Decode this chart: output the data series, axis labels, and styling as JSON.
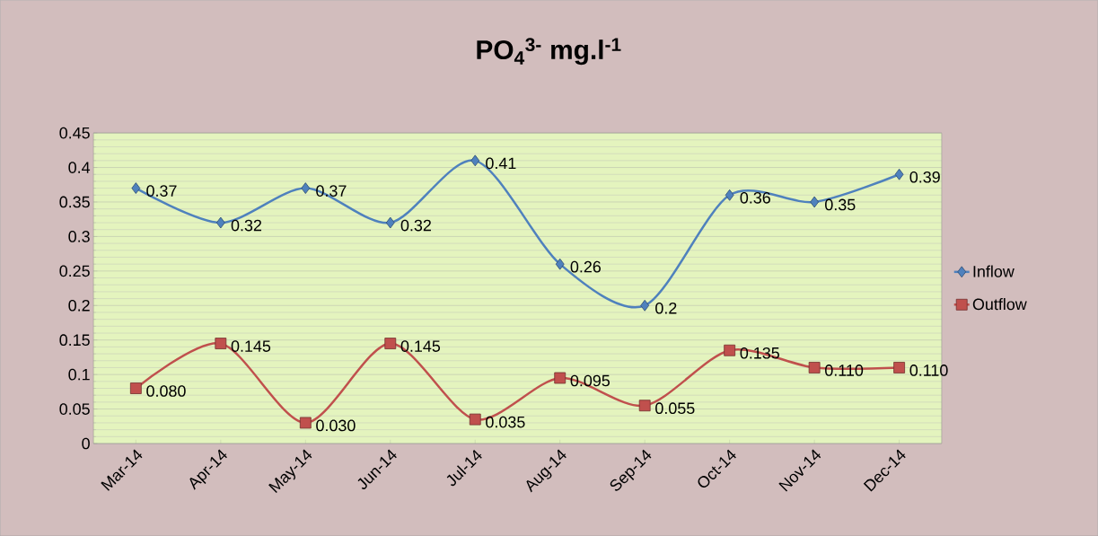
{
  "chart_data": {
    "type": "line",
    "title": "PO$_{4}$$^{3-}$ mg.l$^{-1}$",
    "categories": [
      "Mar-14",
      "Apr-14",
      "May-14",
      "Jun-14",
      "Jul-14",
      "Aug-14",
      "Sep-14",
      "Oct-14",
      "Nov-14",
      "Dec-14"
    ],
    "series": [
      {
        "name": "Inflow",
        "color": "#4f81bd",
        "marker": "diamond",
        "values": [
          0.37,
          0.32,
          0.37,
          0.32,
          0.41,
          0.26,
          0.2,
          0.36,
          0.35,
          0.39
        ],
        "value_labels": [
          "0.37",
          "0.32",
          "0.37",
          "0.32",
          "0.41",
          "0.26",
          "0.2",
          "0.36",
          "0.35",
          "0.39"
        ]
      },
      {
        "name": "Outflow",
        "color": "#c0504d",
        "marker": "square",
        "values": [
          0.08,
          0.145,
          0.03,
          0.145,
          0.035,
          0.095,
          0.055,
          0.135,
          0.11,
          0.11
        ],
        "value_labels": [
          "0.080",
          "0.145",
          "0.030",
          "0.145",
          "0.035",
          "0.095",
          "0.055",
          "0.135",
          "0.110",
          "0.110"
        ]
      }
    ],
    "ylim": [
      0,
      0.45
    ],
    "yticks": [
      0,
      0.05,
      0.1,
      0.15,
      0.2,
      0.25,
      0.3,
      0.35,
      0.4,
      0.45
    ],
    "grid": "y",
    "legend": "right"
  }
}
